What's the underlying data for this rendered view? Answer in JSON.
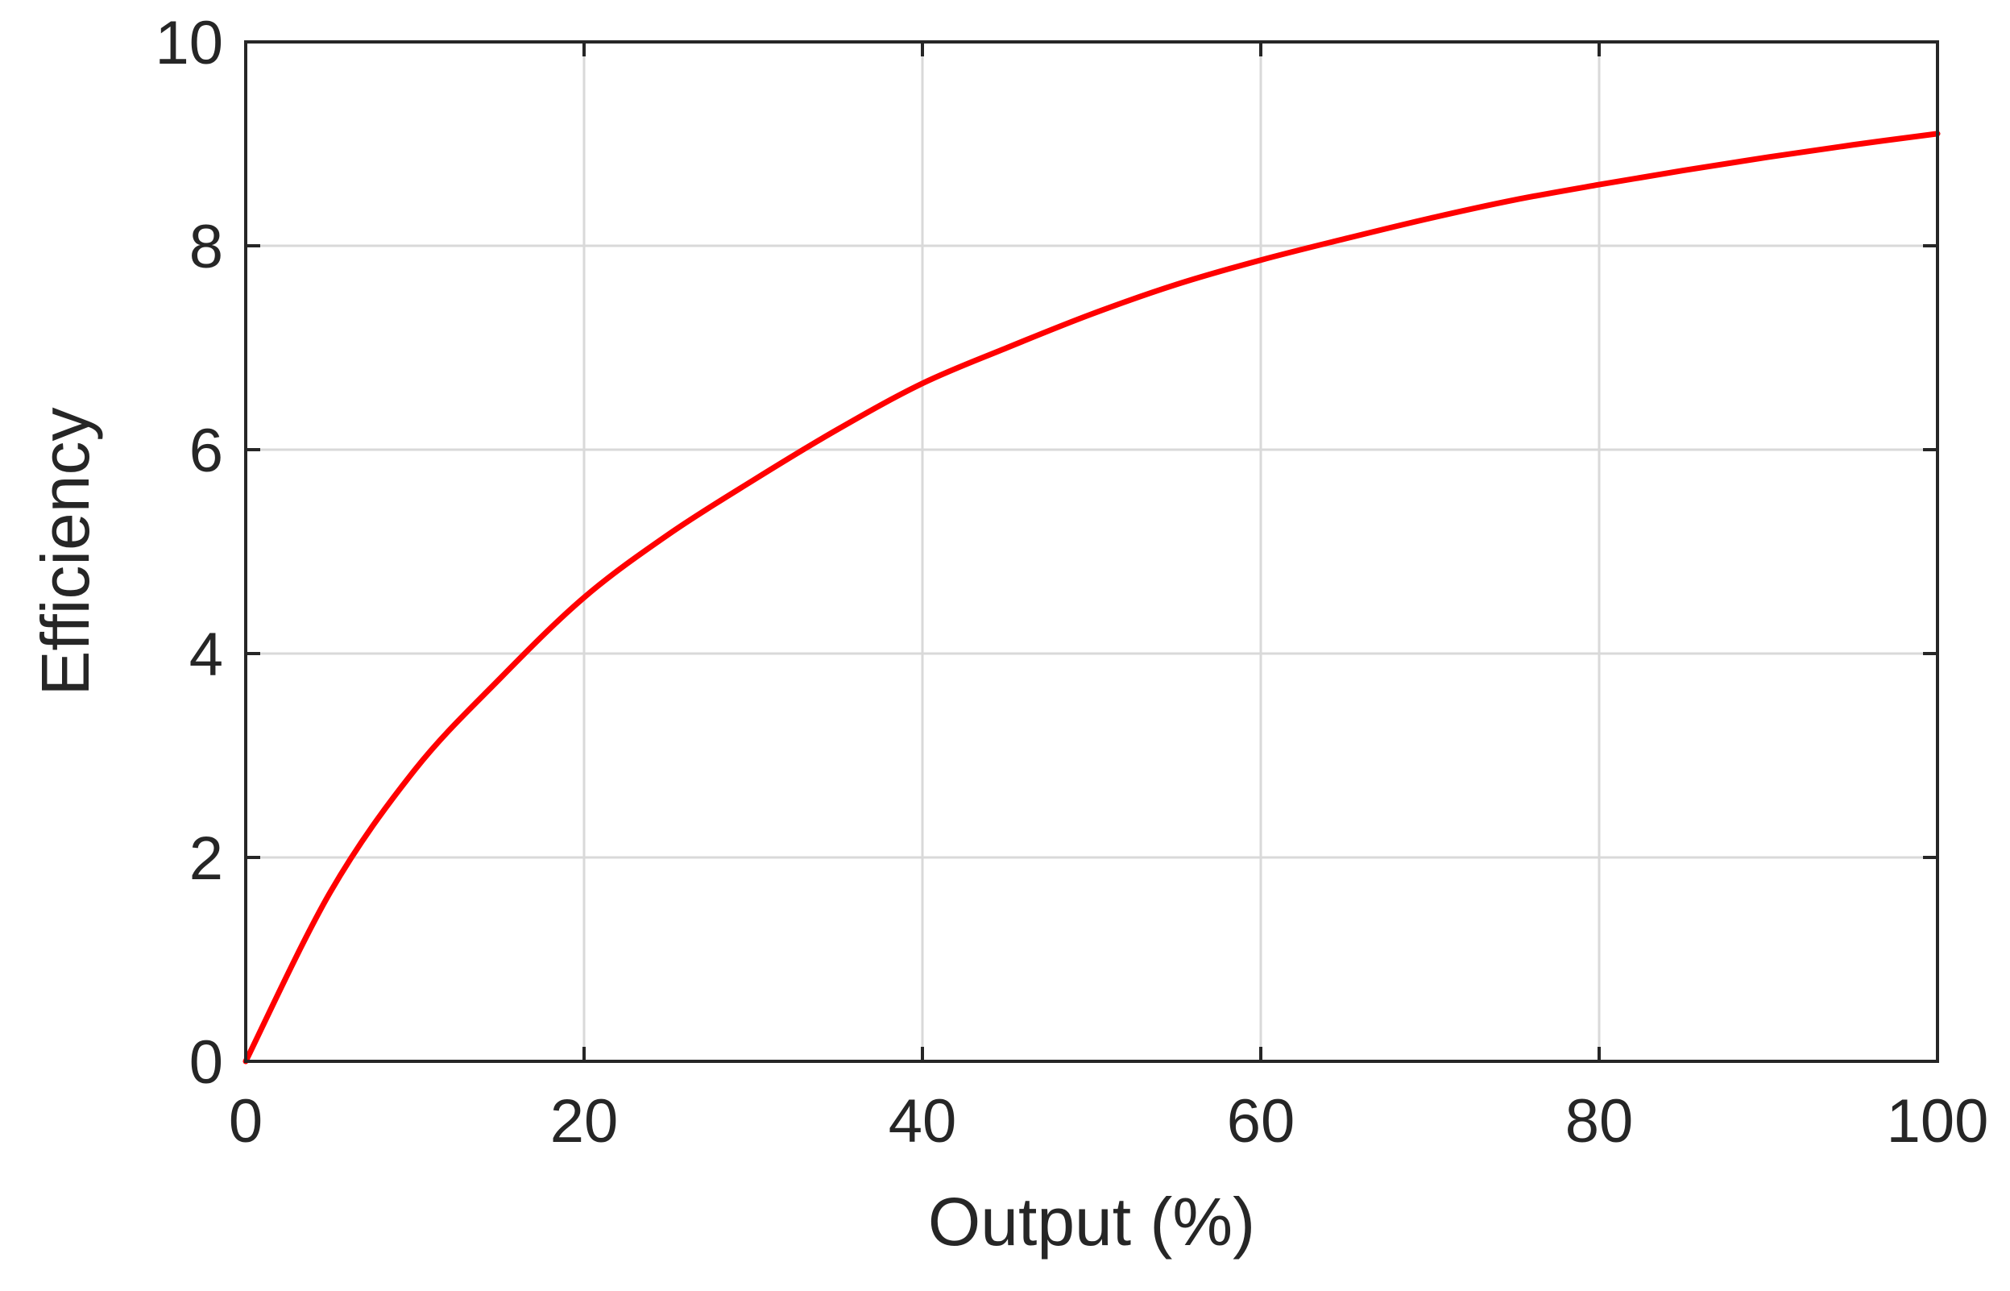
{
  "chart_data": {
    "type": "line",
    "title": "",
    "xlabel": "Output (%)",
    "ylabel": "Efficiency",
    "xlim": [
      0,
      100
    ],
    "ylim": [
      0,
      10
    ],
    "xticks": [
      0,
      20,
      40,
      60,
      80,
      100
    ],
    "yticks": [
      0,
      2,
      4,
      6,
      8,
      10
    ],
    "xtick_labels": [
      "0",
      "20",
      "40",
      "60",
      "80",
      "100"
    ],
    "ytick_labels": [
      "0",
      "2",
      "4",
      "6",
      "8",
      "10"
    ],
    "grid": true,
    "legend": "none",
    "series": [
      {
        "color": "#ff0000",
        "x": [
          0,
          5,
          10,
          15,
          20,
          25,
          30,
          35,
          40,
          45,
          50,
          55,
          60,
          65,
          70,
          75,
          80,
          85,
          90,
          95,
          100
        ],
        "y": [
          0,
          1.66,
          2.86,
          3.75,
          4.55,
          5.17,
          5.7,
          6.2,
          6.65,
          7.0,
          7.33,
          7.62,
          7.86,
          8.07,
          8.27,
          8.45,
          8.6,
          8.74,
          8.87,
          8.99,
          9.1
        ]
      }
    ]
  }
}
